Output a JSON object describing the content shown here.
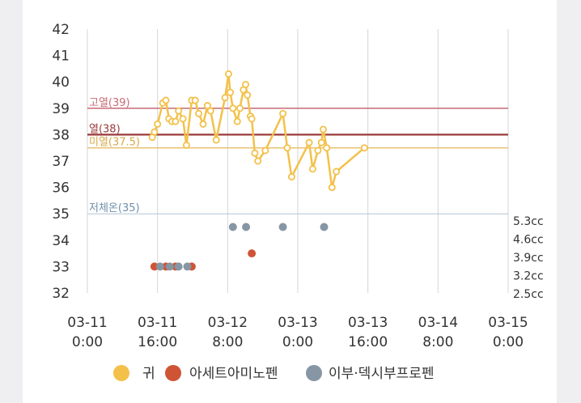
{
  "chart_data": {
    "type": "scatter",
    "x_ticks": [
      {
        "date": "03-11",
        "time": "0:00",
        "h": 0
      },
      {
        "date": "03-11",
        "time": "16:00",
        "h": 16
      },
      {
        "date": "03-12",
        "time": "8:00",
        "h": 32
      },
      {
        "date": "03-13",
        "time": "0:00",
        "h": 48
      },
      {
        "date": "03-13",
        "time": "16:00",
        "h": 64
      },
      {
        "date": "03-14",
        "time": "8:00",
        "h": 80
      },
      {
        "date": "03-15",
        "time": "0:00",
        "h": 96
      }
    ],
    "xlim_h": [
      0,
      96
    ],
    "ylim": [
      32,
      42
    ],
    "y_ticks": [
      "32",
      "33",
      "34",
      "35",
      "36",
      "37",
      "38",
      "39",
      "40",
      "41",
      "42"
    ],
    "right_ticks": [
      "5.3cc",
      "4.6cc",
      "3.9cc",
      "3.2cc",
      "2.5cc"
    ],
    "reference_lines": [
      {
        "label": "고열(39)",
        "value": 39,
        "color": "#c76a74",
        "width": 1.5
      },
      {
        "label": "열(38)",
        "value": 38,
        "color": "#9b3a3a",
        "width": 2.2
      },
      {
        "label": "미열(37.5)",
        "value": 37.5,
        "color": "#e8c275",
        "width": 1.5
      },
      {
        "label": "저체온(35)",
        "value": 35,
        "color": "#b0c4d8",
        "width": 1
      }
    ],
    "series": [
      {
        "name": "귀",
        "color": "#f3c14a",
        "line": true,
        "points": [
          [
            14.8,
            37.9
          ],
          [
            15.3,
            38.1
          ],
          [
            16.0,
            38.4
          ],
          [
            17.2,
            39.2
          ],
          [
            17.9,
            39.3
          ],
          [
            18.6,
            38.6
          ],
          [
            19.3,
            38.5
          ],
          [
            20.1,
            38.5
          ],
          [
            20.8,
            38.9
          ],
          [
            21.8,
            38.6
          ],
          [
            22.6,
            37.6
          ],
          [
            23.8,
            39.3
          ],
          [
            24.6,
            39.3
          ],
          [
            25.4,
            38.8
          ],
          [
            26.4,
            38.4
          ],
          [
            27.4,
            39.1
          ],
          [
            28.1,
            38.9
          ],
          [
            29.4,
            37.8
          ],
          [
            31.4,
            39.4
          ],
          [
            32.2,
            40.3
          ],
          [
            32.6,
            39.6
          ],
          [
            33.2,
            39.0
          ],
          [
            34.2,
            38.5
          ],
          [
            34.8,
            39.0
          ],
          [
            35.6,
            39.7
          ],
          [
            36.1,
            39.9
          ],
          [
            36.5,
            39.5
          ],
          [
            37.2,
            38.7
          ],
          [
            37.5,
            38.6
          ],
          [
            38.2,
            37.3
          ],
          [
            38.9,
            37.0
          ],
          [
            40.6,
            37.4
          ],
          [
            44.6,
            38.8
          ],
          [
            45.6,
            37.5
          ],
          [
            46.6,
            36.4
          ],
          [
            50.6,
            37.7
          ],
          [
            51.4,
            36.7
          ],
          [
            52.6,
            37.4
          ],
          [
            53.4,
            37.7
          ],
          [
            53.8,
            38.2
          ],
          [
            54.6,
            37.5
          ],
          [
            55.8,
            36.0
          ],
          [
            56.8,
            36.6
          ],
          [
            63.2,
            37.5
          ]
        ]
      },
      {
        "name": "아세트아미노펜",
        "color": "#cf5436",
        "line": false,
        "points": [
          [
            15.3,
            33.0
          ],
          [
            17.9,
            33.0
          ],
          [
            20.1,
            33.0
          ],
          [
            23.8,
            33.0
          ],
          [
            37.5,
            33.5
          ]
        ]
      },
      {
        "name": "이부·덱시부프로펜",
        "color": "#8696a4",
        "line": false,
        "points": [
          [
            16.6,
            33.0
          ],
          [
            18.8,
            33.0
          ],
          [
            20.8,
            33.0
          ],
          [
            22.8,
            33.0
          ],
          [
            33.2,
            34.5
          ],
          [
            36.2,
            34.5
          ],
          [
            44.6,
            34.5
          ],
          [
            54.0,
            34.5
          ]
        ]
      }
    ]
  }
}
